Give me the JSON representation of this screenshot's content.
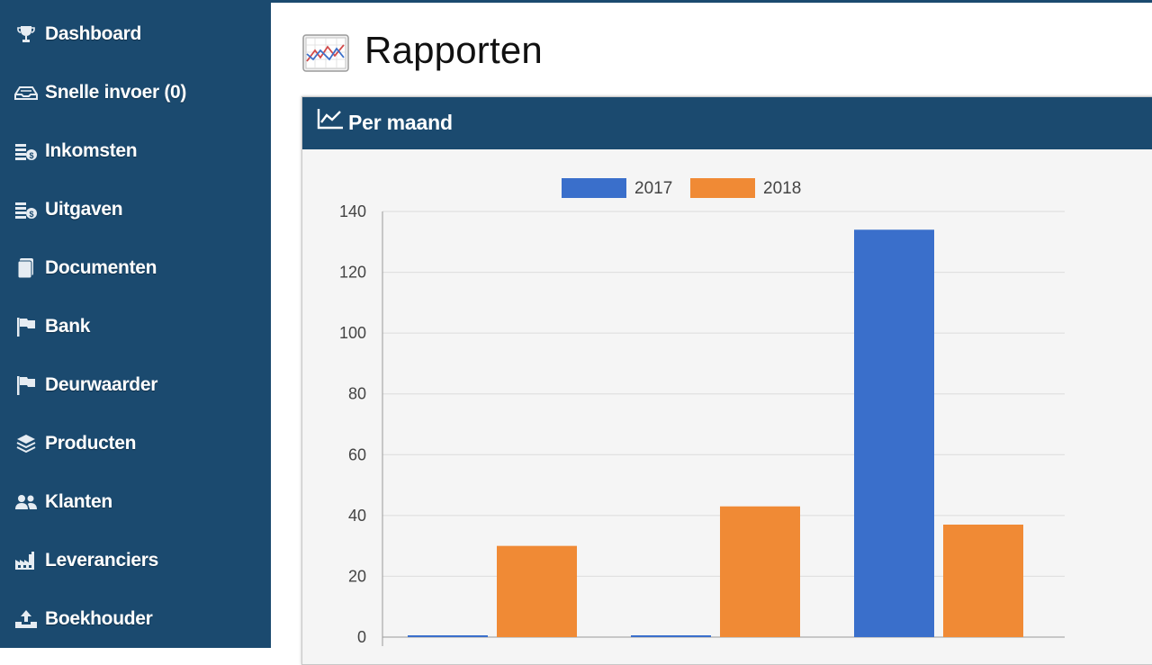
{
  "sidebar": {
    "items": [
      {
        "label": "Dashboard",
        "icon": "trophy-icon"
      },
      {
        "label": "Snelle invoer (0)",
        "icon": "inbox-icon"
      },
      {
        "label": "Inkomsten",
        "icon": "coins-icon"
      },
      {
        "label": "Uitgaven",
        "icon": "coins-icon"
      },
      {
        "label": "Documenten",
        "icon": "document-icon"
      },
      {
        "label": "Bank",
        "icon": "flag-icon"
      },
      {
        "label": "Deurwaarder",
        "icon": "flag-icon"
      },
      {
        "label": "Producten",
        "icon": "layers-icon"
      },
      {
        "label": "Klanten",
        "icon": "users-icon"
      },
      {
        "label": "Leveranciers",
        "icon": "factory-icon"
      },
      {
        "label": "Boekhouder",
        "icon": "upload-icon"
      }
    ]
  },
  "page": {
    "title": "Rapporten",
    "icon": "report-chart-icon"
  },
  "panel": {
    "title": "Per maand",
    "icon": "line-chart-icon"
  },
  "colors": {
    "sidebar_bg": "#1b4a6f",
    "series_2017": "#3a6fcb",
    "series_2018": "#f08a35"
  },
  "chart_data": {
    "type": "bar",
    "legend_position": "top",
    "grid": true,
    "ylim": [
      0,
      140
    ],
    "yticks": [
      0,
      20,
      40,
      60,
      80,
      100,
      120,
      140
    ],
    "categories": [
      "",
      "",
      ""
    ],
    "series": [
      {
        "name": "2017",
        "values": [
          0,
          0,
          134
        ]
      },
      {
        "name": "2018",
        "values": [
          30,
          43,
          37
        ]
      }
    ]
  }
}
